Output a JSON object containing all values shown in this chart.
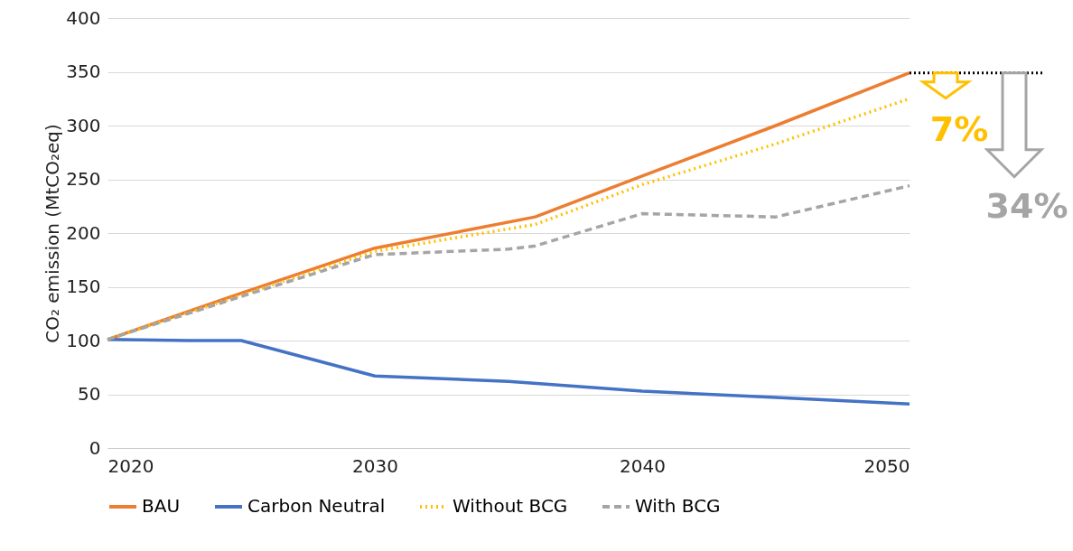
{
  "chart_data": {
    "type": "line",
    "ylabel": "CO₂ emission (MtCO₂eq)",
    "x": [
      2020,
      2025,
      2030,
      2036,
      2040,
      2045,
      2050
    ],
    "xlim": [
      2020,
      2050
    ],
    "xticks": [
      2020,
      2030,
      2040,
      2050
    ],
    "ylim": [
      0,
      400
    ],
    "yticks": [
      0,
      50,
      100,
      150,
      200,
      250,
      300,
      350,
      400
    ],
    "grid": "y",
    "legend": "bottom",
    "series": [
      {
        "name": "BAU",
        "color": "#ed7d31",
        "line_style": "solid",
        "values": [
          101,
          144,
          186,
          215,
          253,
          300,
          349
        ]
      },
      {
        "name": "Carbon Neutral",
        "color": "#4472c4",
        "line_style": "solid",
        "x": [
          2020,
          2023,
          2025,
          2030,
          2035,
          2040,
          2045,
          2050
        ],
        "values": [
          101,
          100,
          100,
          67,
          62,
          53,
          47,
          41
        ]
      },
      {
        "name": "Without BCG",
        "color": "#ffc000",
        "line_style": "dotted",
        "values": [
          101,
          142,
          183,
          208,
          245,
          283,
          325
        ]
      },
      {
        "name": "With BCG",
        "color": "#a5a5a5",
        "line_style": "dashed",
        "x": [
          2020,
          2025,
          2030,
          2035,
          2036,
          2040,
          2045,
          2050
        ],
        "values": [
          101,
          141,
          180,
          185,
          188,
          218,
          215,
          244
        ]
      }
    ],
    "annotations": [
      "7%",
      "34%"
    ]
  }
}
